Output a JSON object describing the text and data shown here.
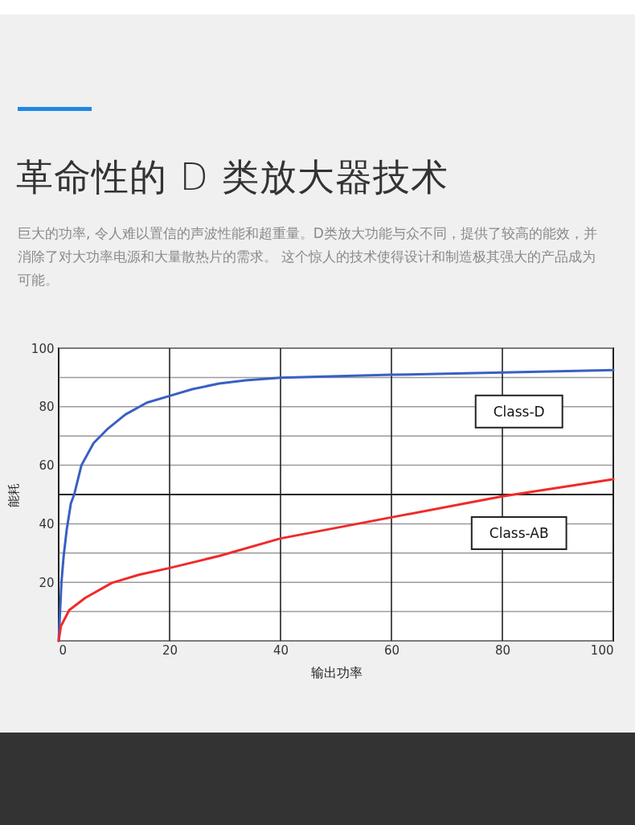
{
  "chart_data": {
    "type": "line",
    "title": "革命性的 D 类放大器技术",
    "subtitle": "巨大的功率, 令人难以置信的声波性能和超重量。D类放大功能与众不同，提供了较高的能效，并消除了对大功率电源和大量散热片的需求。 这个惊人的技术使得设计和制造极其强大的产品成为可能。",
    "xlabel": "输出功率",
    "ylabel": "能耗",
    "xlim": [
      0,
      100
    ],
    "xticks": [
      0,
      20,
      40,
      60,
      80,
      100
    ],
    "ylim": [
      0,
      100
    ],
    "yticks": [
      {
        "value": 0,
        "label": null
      },
      {
        "value": 10,
        "label": null
      },
      20,
      {
        "value": 30,
        "label": null
      },
      40,
      {
        "value": 50,
        "label": null
      },
      60,
      {
        "value": 70,
        "label": null
      },
      80,
      {
        "value": 90,
        "label": null
      },
      100
    ],
    "grid": true,
    "legend": false,
    "marker": "none",
    "line_style": "solid",
    "ref_lines": [
      {
        "axis": "y",
        "value": 50,
        "color": "#222222"
      }
    ],
    "series": [
      {
        "name": "Class-D",
        "color": "#3a5fc4",
        "x": [
          0,
          0.5,
          0.9,
          1.45,
          2.2,
          2.8,
          4.1,
          6.3,
          8.7,
          12,
          15.9,
          20,
          24.1,
          28.9,
          33.7,
          40,
          60,
          80,
          100
        ],
        "values": [
          0,
          20,
          29,
          38,
          47,
          50,
          60,
          67.6,
          72.2,
          77.3,
          81.4,
          83.7,
          86,
          87.9,
          89,
          89.9,
          90.9,
          91.7,
          92.5
        ]
      },
      {
        "name": "Class-AB",
        "color": "#f02a2a",
        "x": [
          0,
          0.4,
          1.9,
          4.8,
          9.6,
          14.5,
          20,
          28.9,
          40,
          60,
          80,
          100
        ],
        "values": [
          0,
          5,
          10.5,
          14.7,
          19.8,
          22.6,
          24.9,
          29,
          35,
          42.2,
          49.4,
          55.2
        ]
      }
    ]
  }
}
